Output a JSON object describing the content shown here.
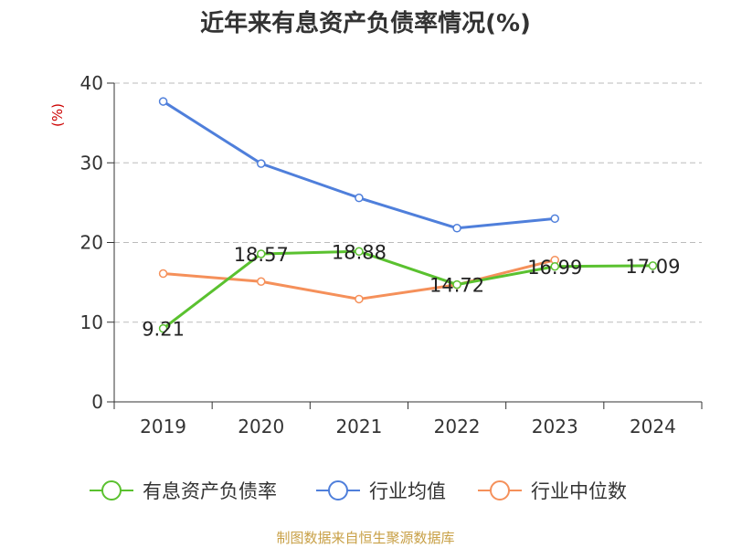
{
  "chart_data": {
    "type": "line",
    "title": "近年来有息资产负债率情况(%)",
    "ylabel": "(%)",
    "categories": [
      "2019",
      "2020",
      "2021",
      "2022",
      "2023",
      "2024"
    ],
    "ylim": [
      0,
      40
    ],
    "yticks": [
      0,
      10,
      20,
      30,
      40
    ],
    "ytick_labels": [
      "0",
      "10",
      "20",
      "30",
      "40"
    ],
    "grid": true,
    "legend_position": "bottom",
    "series": [
      {
        "name": "有息资产负债率",
        "color": "#5ac12f",
        "values": [
          9.21,
          18.57,
          18.88,
          14.72,
          16.99,
          17.09
        ],
        "labels": [
          "9.21",
          "18.57",
          "18.88",
          "14.72",
          "16.99",
          "17.09"
        ]
      },
      {
        "name": "行业均值",
        "color": "#4f7fdb",
        "values": [
          37.7,
          29.9,
          25.6,
          21.8,
          23.0,
          null
        ]
      },
      {
        "name": "行业中位数",
        "color": "#f5905a",
        "values": [
          16.1,
          15.1,
          12.9,
          14.7,
          17.8,
          null
        ]
      }
    ]
  },
  "source": "制图数据来自恒生聚源数据库",
  "colors": {
    "unit": "#cc0000",
    "source": "#c8a046",
    "axis": "#333333",
    "grid": "#bbbbbb"
  }
}
